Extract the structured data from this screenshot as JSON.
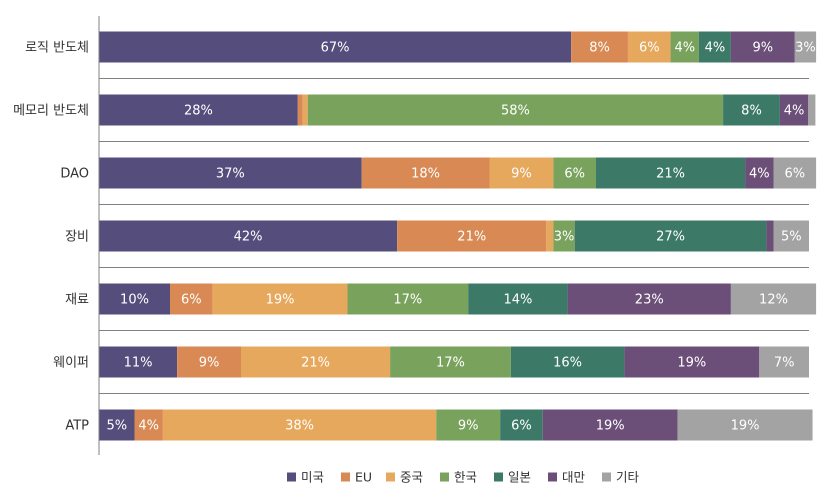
{
  "chart_data": {
    "type": "bar",
    "orientation": "horizontal",
    "stacked": true,
    "normalized": true,
    "categories": [
      "로직 반도체",
      "메모리 반도체",
      "DAO",
      "장비",
      "재료",
      "웨이퍼",
      "ATP"
    ],
    "series": [
      {
        "name": "미국",
        "color": "#554e7d",
        "values": [
          66.5,
          28,
          37,
          42,
          10,
          11,
          5
        ],
        "labels": [
          "67%",
          "28%",
          "37%",
          "42%",
          "10%",
          "11%",
          "5%"
        ]
      },
      {
        "name": "EU",
        "color": "#d98a54",
        "values": [
          8,
          0.7,
          18,
          21,
          6,
          9,
          4
        ],
        "labels": [
          "8%",
          "",
          "18%",
          "21%",
          "6%",
          "9%",
          "4%"
        ]
      },
      {
        "name": "중국",
        "color": "#e6a85c",
        "values": [
          6,
          0.7,
          9,
          1,
          19,
          21,
          38.5
        ],
        "labels": [
          "6%",
          "",
          "9%",
          "",
          "19%",
          "21%",
          "38%"
        ]
      },
      {
        "name": "한국",
        "color": "#79a35d",
        "values": [
          4,
          58.5,
          6,
          3,
          17,
          17,
          9
        ],
        "labels": [
          "4%",
          "58%",
          "6%",
          "3%",
          "17%",
          "17%",
          "9%"
        ]
      },
      {
        "name": "일본",
        "color": "#3c7a67",
        "values": [
          4.5,
          8,
          21,
          27,
          14,
          16,
          6
        ],
        "labels": [
          "4%",
          "8%",
          "21%",
          "27%",
          "14%",
          "16%",
          "6%"
        ]
      },
      {
        "name": "대만",
        "color": "#6b4f78",
        "values": [
          9,
          4,
          4,
          1,
          23,
          19,
          19
        ],
        "labels": [
          "9%",
          "4%",
          "4%",
          "",
          "23%",
          "19%",
          "19%"
        ]
      },
      {
        "name": "기타",
        "color": "#a3a3a3",
        "values": [
          3,
          1,
          6,
          5,
          12,
          7,
          19
        ],
        "labels": [
          "3%",
          "",
          "6%",
          "5%",
          "12%",
          "7%",
          "19%"
        ]
      }
    ],
    "xlim": [
      0,
      100
    ],
    "title": "",
    "xlabel": "",
    "ylabel": "",
    "grid": "horizontal separators between categories",
    "legend_position": "bottom-center"
  }
}
